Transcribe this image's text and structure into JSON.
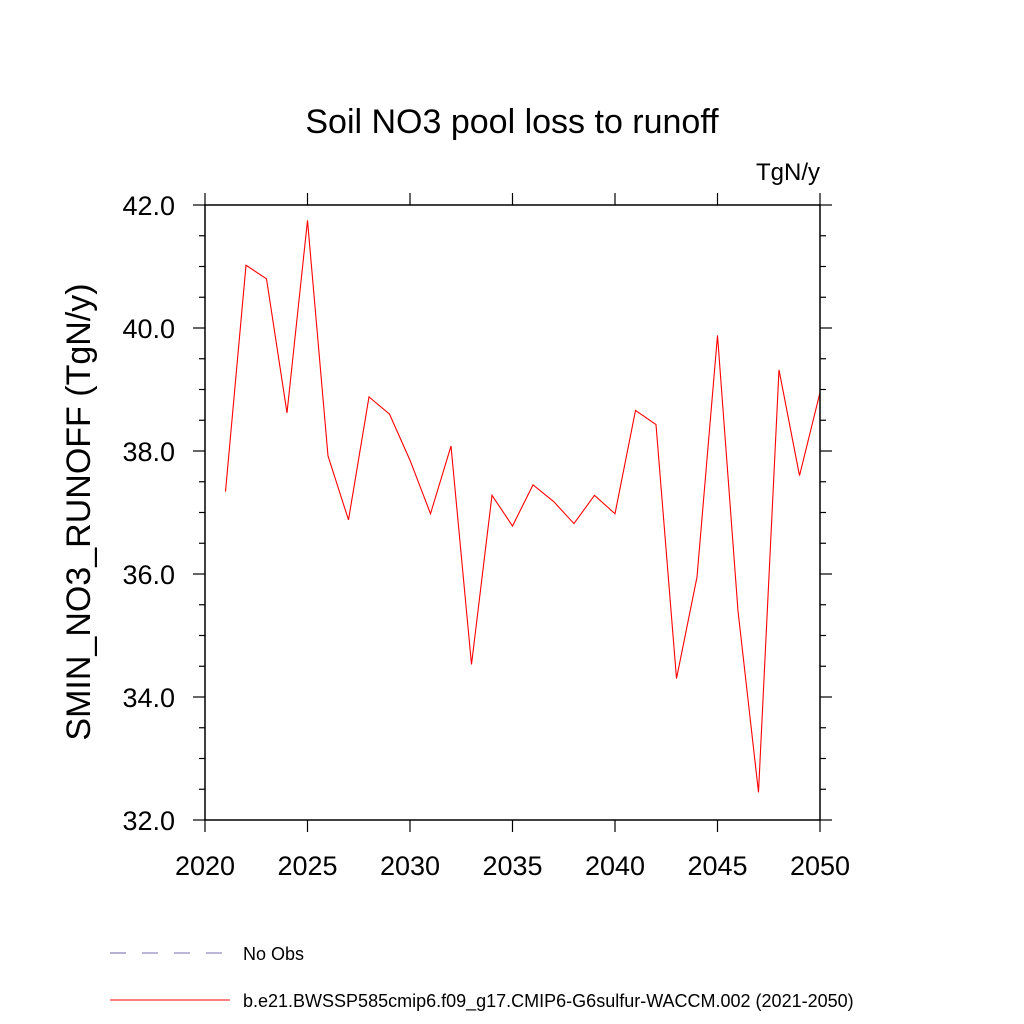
{
  "chart_data": {
    "type": "line",
    "title": "Soil NO3 pool loss to runoff",
    "units": "TgN/y",
    "ylabel": "SMIN_NO3_RUNOFF  (TgN/y)",
    "xlabel": "",
    "xlim": [
      2020,
      2050
    ],
    "ylim": [
      32,
      42
    ],
    "xticks": [
      2020,
      2025,
      2030,
      2035,
      2040,
      2045,
      2050
    ],
    "xtick_labels": [
      "2020",
      "2025",
      "2030",
      "2035",
      "2040",
      "2045",
      "2050"
    ],
    "yticks": [
      32,
      34,
      36,
      38,
      40,
      42
    ],
    "ytick_labels": [
      "32.0",
      "34.0",
      "36.0",
      "38.0",
      "40.0",
      "42.0"
    ],
    "grid": false,
    "legend_position": "bottom",
    "series": [
      {
        "name": "b.e21.BWSSP585cmip6.f09_g17.CMIP6-G6sulfur-WACCM.002 (2021-2050)",
        "color": "#ff0000",
        "line_style": "solid",
        "x": [
          2021,
          2022,
          2023,
          2024,
          2025,
          2026,
          2027,
          2028,
          2029,
          2030,
          2031,
          2032,
          2033,
          2034,
          2035,
          2036,
          2037,
          2038,
          2039,
          2040,
          2041,
          2042,
          2043,
          2044,
          2045,
          2046,
          2047,
          2048,
          2049,
          2050
        ],
        "y": [
          37.34,
          41.02,
          40.8,
          38.62,
          41.75,
          37.92,
          36.88,
          38.88,
          38.6,
          37.85,
          36.98,
          38.08,
          34.53,
          37.28,
          36.78,
          37.45,
          37.18,
          36.82,
          37.28,
          36.98,
          38.66,
          38.43,
          34.3,
          35.95,
          39.88,
          35.4,
          32.45,
          39.32,
          37.6,
          38.95
        ]
      }
    ],
    "legend": [
      {
        "label": "No Obs",
        "color": "#7a6fb5",
        "line_style": "dashed"
      },
      {
        "label": "b.e21.BWSSP585cmip6.f09_g17.CMIP6-G6sulfur-WACCM.002 (2021-2050)",
        "color": "#ff0000",
        "line_style": "solid"
      }
    ]
  }
}
